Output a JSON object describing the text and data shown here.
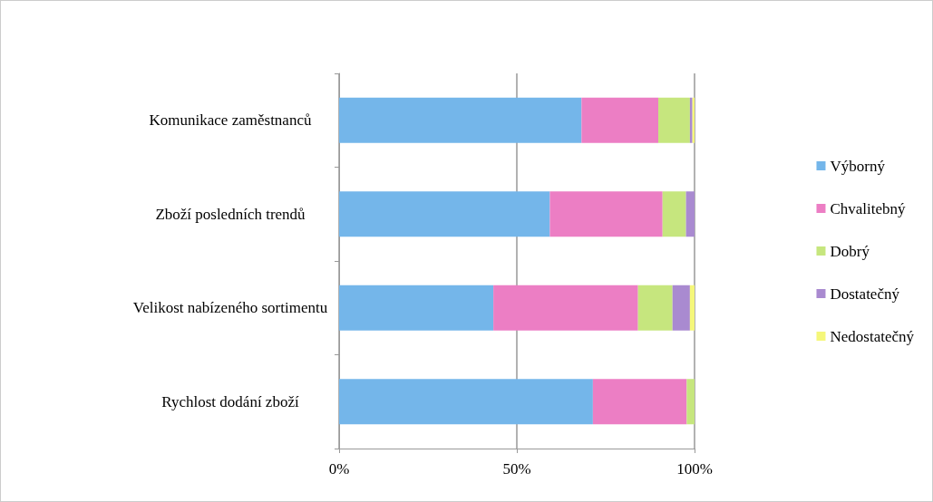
{
  "chart_data": {
    "type": "bar",
    "orientation": "horizontal",
    "stacked": true,
    "categories": [
      "Komunikace zaměstnanců",
      "Zboží posledních trendů",
      "Velikost nabízeného sortimentu",
      "Rychlost dodání zboží"
    ],
    "series": [
      {
        "name": "Výborný",
        "color": "#74b6ea",
        "values": [
          68.2,
          59.3,
          43.4,
          71.4
        ]
      },
      {
        "name": "Chvalitebný",
        "color": "#ec7ec4",
        "values": [
          21.6,
          31.7,
          40.7,
          26.4
        ]
      },
      {
        "name": "Dobrý",
        "color": "#c6e67e",
        "values": [
          8.9,
          6.6,
          9.7,
          2.2
        ]
      },
      {
        "name": "Dostatečný",
        "color": "#a98ad0",
        "values": [
          0.7,
          2.4,
          4.9,
          0
        ]
      },
      {
        "name": "Nedostatečný",
        "color": "#f5f77a",
        "values": [
          0.6,
          0,
          1.3,
          0
        ]
      }
    ],
    "xlim": [
      0,
      100
    ],
    "xticks": [
      {
        "value": 0,
        "label": "0%"
      },
      {
        "value": 50,
        "label": "50%"
      },
      {
        "value": 100,
        "label": "100%"
      }
    ],
    "grid": "x",
    "legend": "right"
  }
}
